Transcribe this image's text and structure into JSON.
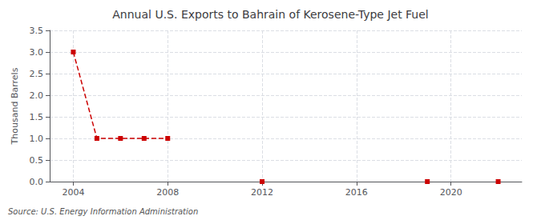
{
  "chart_data": {
    "type": "line",
    "title": "Annual U.S. Exports to Bahrain of Kerosene-Type Jet Fuel",
    "ylabel": "Thousand Barrels",
    "annotation": "Source: U.S. Energy Information Administration",
    "x": [
      2004,
      2005,
      2006,
      2007,
      2008,
      2012,
      2019,
      2022
    ],
    "values": [
      3.0,
      1.0,
      1.0,
      1.0,
      1.0,
      0.0,
      0.0,
      0.0
    ],
    "color": "#cc0000",
    "marker": "square",
    "line_style": "dashed",
    "xlim": [
      2003.0,
      2023.0
    ],
    "ylim": [
      0.0,
      3.5
    ],
    "xticks": [
      2004,
      2008,
      2012,
      2016,
      2020
    ],
    "yticks": [
      {
        "value": 0.0,
        "label": "0.0"
      },
      0.5,
      {
        "value": 1.0,
        "label": "1.0"
      },
      1.5,
      {
        "value": 2.0,
        "label": "2.0"
      },
      2.5,
      {
        "value": 3.0,
        "label": "3.0"
      },
      3.5
    ],
    "grid": true
  }
}
